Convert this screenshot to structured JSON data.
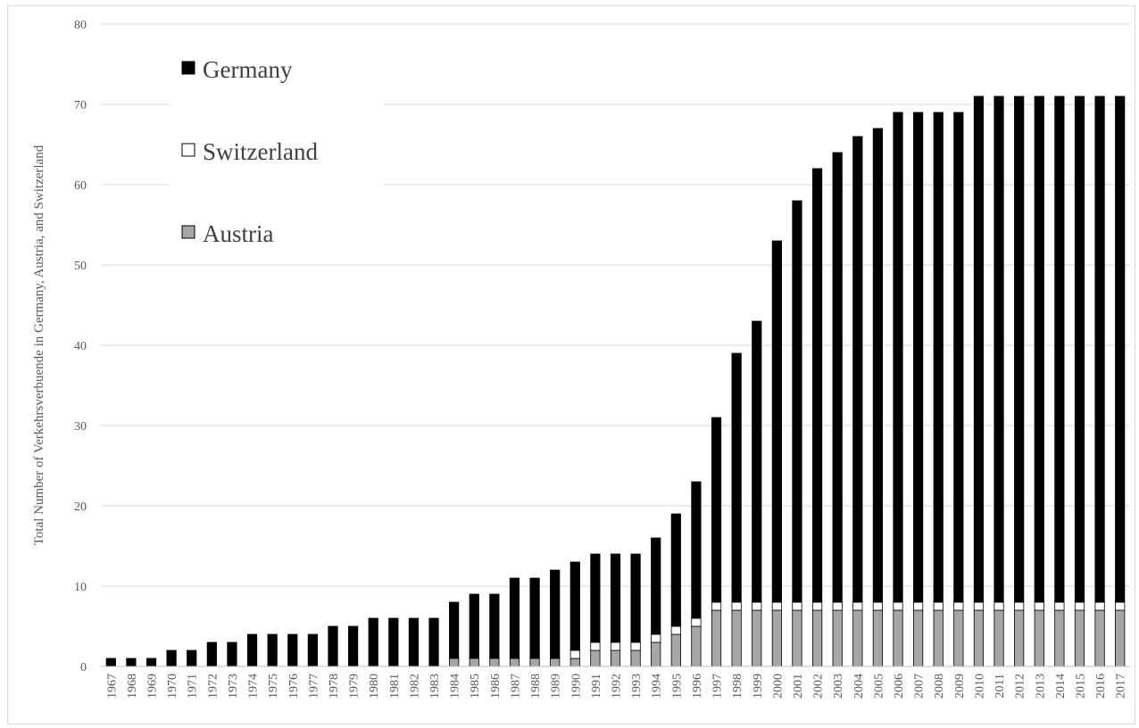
{
  "chart_data": {
    "type": "bar",
    "stacked": true,
    "title": "",
    "xlabel": "",
    "ylabel": "Total Number of Verkehrsverbuende in Germany, Austria, and Switzerland",
    "ylim": [
      0,
      80
    ],
    "yticks": [
      0,
      10,
      20,
      30,
      40,
      50,
      60,
      70,
      80
    ],
    "grid": true,
    "legend_position": "top-left",
    "categories": [
      "1967",
      "1968",
      "1969",
      "1970",
      "1971",
      "1972",
      "1973",
      "1974",
      "1975",
      "1976",
      "1977",
      "1978",
      "1979",
      "1980",
      "1981",
      "1982",
      "1983",
      "1984",
      "1985",
      "1986",
      "1987",
      "1988",
      "1989",
      "1990",
      "1991",
      "1992",
      "1993",
      "1994",
      "1995",
      "1996",
      "1997",
      "1998",
      "1999",
      "2000",
      "2001",
      "2002",
      "2003",
      "2004",
      "2005",
      "2006",
      "2007",
      "2008",
      "2009",
      "2010",
      "2011",
      "2012",
      "2013",
      "2014",
      "2015",
      "2016",
      "2017"
    ],
    "series": [
      {
        "name": "Austria",
        "color": "#a6a6a6",
        "values": [
          0,
          0,
          0,
          0,
          0,
          0,
          0,
          0,
          0,
          0,
          0,
          0,
          0,
          0,
          0,
          0,
          0,
          1,
          1,
          1,
          1,
          1,
          1,
          1,
          2,
          2,
          2,
          3,
          4,
          5,
          7,
          7,
          7,
          7,
          7,
          7,
          7,
          7,
          7,
          7,
          7,
          7,
          7,
          7,
          7,
          7,
          7,
          7,
          7,
          7,
          7
        ]
      },
      {
        "name": "Switzerland",
        "color": "#ffffff",
        "values": [
          0,
          0,
          0,
          0,
          0,
          0,
          0,
          0,
          0,
          0,
          0,
          0,
          0,
          0,
          0,
          0,
          0,
          0,
          0,
          0,
          0,
          0,
          0,
          1,
          1,
          1,
          1,
          1,
          1,
          1,
          1,
          1,
          1,
          1,
          1,
          1,
          1,
          1,
          1,
          1,
          1,
          1,
          1,
          1,
          1,
          1,
          1,
          1,
          1,
          1,
          1
        ]
      },
      {
        "name": "Germany",
        "color": "#000000",
        "values": [
          1,
          1,
          1,
          2,
          2,
          3,
          3,
          4,
          4,
          4,
          4,
          5,
          5,
          6,
          6,
          6,
          6,
          7,
          8,
          8,
          10,
          10,
          11,
          11,
          11,
          11,
          11,
          12,
          14,
          17,
          23,
          31,
          35,
          45,
          50,
          54,
          56,
          58,
          59,
          61,
          61,
          61,
          61,
          63,
          63,
          63,
          63,
          63,
          63,
          63,
          63
        ]
      }
    ],
    "legend_order": [
      "Germany",
      "Switzerland",
      "Austria"
    ]
  }
}
